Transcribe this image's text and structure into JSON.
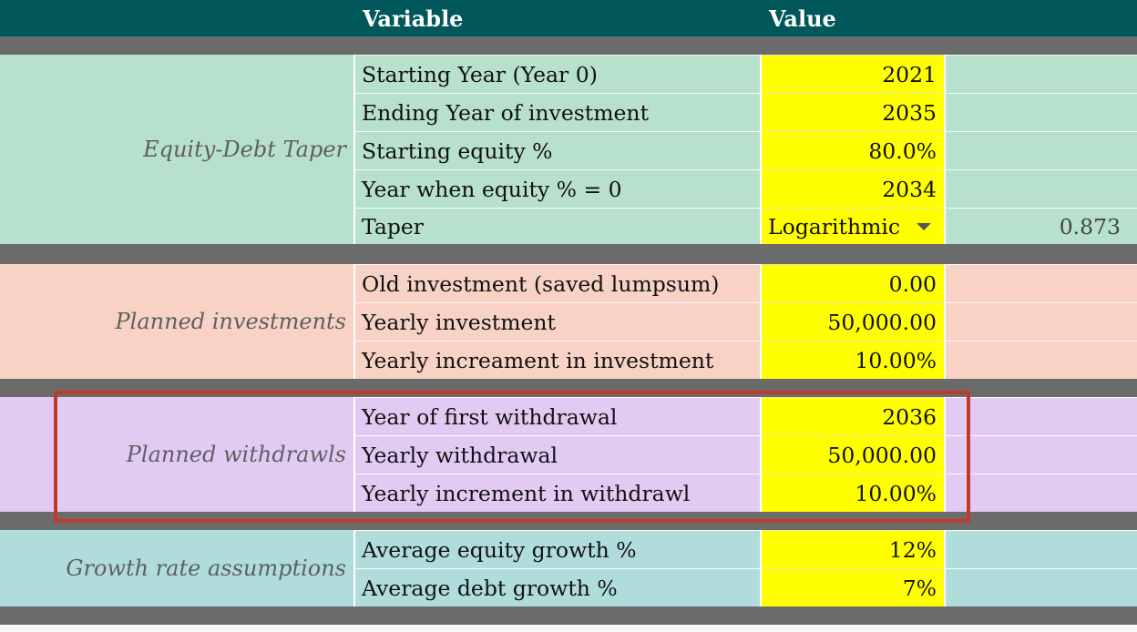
{
  "header": {
    "variable_label": "Variable",
    "value_label": "Value"
  },
  "colors": {
    "header_bg": "#01575a",
    "separator": "#6b6b6b",
    "equity_bg": "#b7e1cd",
    "investments_bg": "#f8d3c5",
    "withdrawals_bg": "#e2cbf3",
    "growth_bg": "#b1dcdc",
    "input_cell": "#ffff00",
    "highlight_border": "#c0392b"
  },
  "groups": [
    {
      "name": "Equity-Debt Taper",
      "rows": [
        {
          "label": "Starting Year (Year 0)",
          "value": "2021"
        },
        {
          "label": "Ending Year of investment",
          "value": "2035"
        },
        {
          "label": "Starting equity %",
          "value": "80.0%"
        },
        {
          "label": "Year when equity % = 0",
          "value": "2034"
        },
        {
          "label": "Taper",
          "value": "Logarithmic",
          "extra": "0.873"
        }
      ]
    },
    {
      "name": "Planned investments",
      "rows": [
        {
          "label": "Old investment (saved lumpsum)",
          "value": "0.00"
        },
        {
          "label": "Yearly investment",
          "value": "50,000.00"
        },
        {
          "label": "Yearly increament in investment",
          "value": "10.00%"
        }
      ]
    },
    {
      "name": "Planned withdrawls",
      "rows": [
        {
          "label": "Year of first withdrawal",
          "value": "2036"
        },
        {
          "label": "Yearly withdrawal",
          "value": "50,000.00"
        },
        {
          "label": "Yearly increment in withdrawl",
          "value": "10.00%"
        }
      ]
    },
    {
      "name": "Growth rate assumptions",
      "rows": [
        {
          "label": "Average equity growth %",
          "value": "12%"
        },
        {
          "label": "Average debt growth %",
          "value": "7%"
        }
      ]
    }
  ]
}
